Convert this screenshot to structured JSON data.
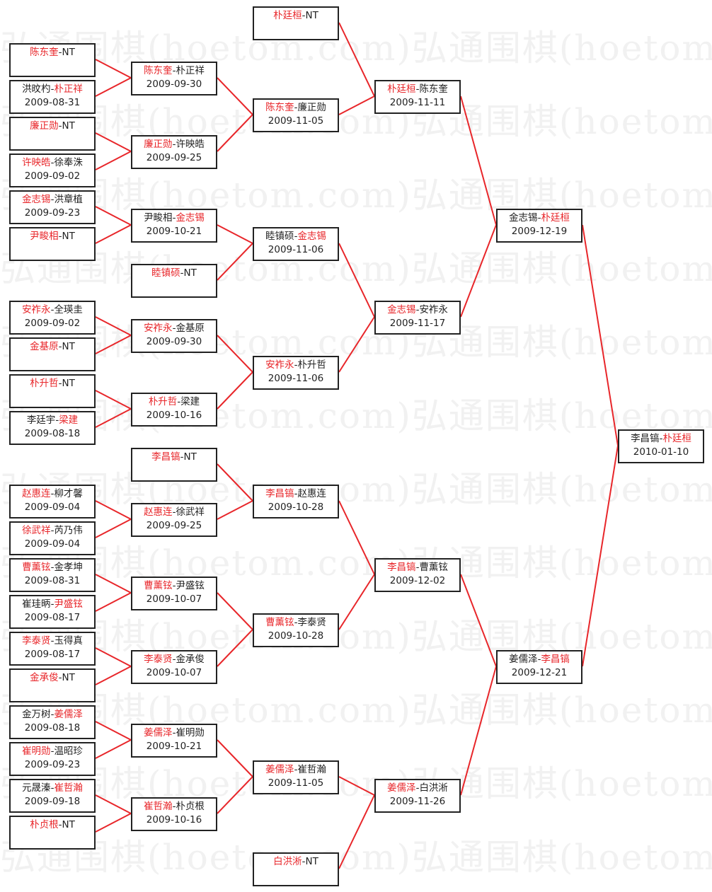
{
  "watermark": "弘通围棋(hoetom.com)",
  "colors": {
    "winner": "#e8262a",
    "line": "#e8262a",
    "border": "#222222"
  },
  "rounds": [
    [
      {
        "p1": "陈东奎",
        "p2": "NT",
        "winner": 1,
        "date": ""
      },
      {
        "p1": "洪旼杓",
        "p2": "朴正祥",
        "winner": 2,
        "date": "2009-08-31"
      },
      {
        "p1": "廉正勋",
        "p2": "NT",
        "winner": 1,
        "date": ""
      },
      {
        "p1": "许映皓",
        "p2": "徐奉洙",
        "winner": 1,
        "date": "2009-09-02"
      },
      {
        "p1": "金志锡",
        "p2": "洪章植",
        "winner": 1,
        "date": "2009-09-23"
      },
      {
        "p1": "尹畯相",
        "p2": "NT",
        "winner": 1,
        "date": ""
      },
      {
        "p1": "安祚永",
        "p2": "全瑛圭",
        "winner": 1,
        "date": "2009-09-02"
      },
      {
        "p1": "金基原",
        "p2": "NT",
        "winner": 1,
        "date": ""
      },
      {
        "p1": "朴升哲",
        "p2": "NT",
        "winner": 1,
        "date": ""
      },
      {
        "p1": "李廷宇",
        "p2": "梁建",
        "winner": 2,
        "date": "2009-08-18"
      },
      {
        "p1": "赵惠连",
        "p2": "柳才馨",
        "winner": 1,
        "date": "2009-09-04"
      },
      {
        "p1": "徐武祥",
        "p2": "芮乃伟",
        "winner": 1,
        "date": "2009-09-04"
      },
      {
        "p1": "曹薰铉",
        "p2": "金孝坤",
        "winner": 1,
        "date": "2009-08-31"
      },
      {
        "p1": "崔珪昞",
        "p2": "尹盛铉",
        "winner": 2,
        "date": "2009-08-17"
      },
      {
        "p1": "李泰贤",
        "p2": "玉得真",
        "winner": 1,
        "date": "2009-08-17"
      },
      {
        "p1": "金承俊",
        "p2": "NT",
        "winner": 1,
        "date": ""
      },
      {
        "p1": "金万树",
        "p2": "姜儒泽",
        "winner": 2,
        "date": "2009-08-18"
      },
      {
        "p1": "崔明勋",
        "p2": "温昭珍",
        "winner": 1,
        "date": "2009-09-23"
      },
      {
        "p1": "元晟溱",
        "p2": "崔哲瀚",
        "winner": 2,
        "date": "2009-09-18"
      },
      {
        "p1": "朴贞根",
        "p2": "NT",
        "winner": 1,
        "date": ""
      }
    ],
    [
      {
        "p1": "陈东奎",
        "p2": "朴正祥",
        "winner": 1,
        "date": "2009-09-30"
      },
      {
        "p1": "廉正勋",
        "p2": "许映皓",
        "winner": 1,
        "date": "2009-09-25"
      },
      {
        "p1": "尹畯相",
        "p2": "金志锡",
        "winner": 2,
        "date": "2009-10-21"
      },
      {
        "p1": "睦镇硕",
        "p2": "NT",
        "winner": 1,
        "date": ""
      },
      {
        "p1": "安祚永",
        "p2": "金基原",
        "winner": 1,
        "date": "2009-09-30"
      },
      {
        "p1": "朴升哲",
        "p2": "梁建",
        "winner": 1,
        "date": "2009-10-16"
      },
      {
        "p1": "李昌镐",
        "p2": "NT",
        "winner": 1,
        "date": ""
      },
      {
        "p1": "赵惠连",
        "p2": "徐武祥",
        "winner": 1,
        "date": "2009-09-25"
      },
      {
        "p1": "曹薰铉",
        "p2": "尹盛铉",
        "winner": 1,
        "date": "2009-10-07"
      },
      {
        "p1": "李泰贤",
        "p2": "金承俊",
        "winner": 1,
        "date": "2009-10-07"
      },
      {
        "p1": "姜儒泽",
        "p2": "崔明勋",
        "winner": 1,
        "date": "2009-10-21"
      },
      {
        "p1": "崔哲瀚",
        "p2": "朴贞根",
        "winner": 1,
        "date": "2009-10-16"
      }
    ],
    [
      {
        "p1": "朴廷桓",
        "p2": "NT",
        "winner": 1,
        "date": ""
      },
      {
        "p1": "陈东奎",
        "p2": "廉正勋",
        "winner": 1,
        "date": "2009-11-05"
      },
      {
        "p1": "睦镇硕",
        "p2": "金志锡",
        "winner": 2,
        "date": "2009-11-06"
      },
      {
        "p1": "安祚永",
        "p2": "朴升哲",
        "winner": 1,
        "date": "2009-11-06"
      },
      {
        "p1": "李昌镐",
        "p2": "赵惠连",
        "winner": 1,
        "date": "2009-10-28"
      },
      {
        "p1": "曹薰铉",
        "p2": "李泰贤",
        "winner": 1,
        "date": "2009-10-28"
      },
      {
        "p1": "姜儒泽",
        "p2": "崔哲瀚",
        "winner": 1,
        "date": "2009-11-05"
      },
      {
        "p1": "白洪淅",
        "p2": "NT",
        "winner": 1,
        "date": ""
      }
    ],
    [
      {
        "p1": "朴廷桓",
        "p2": "陈东奎",
        "winner": 1,
        "date": "2009-11-11"
      },
      {
        "p1": "金志锡",
        "p2": "安祚永",
        "winner": 1,
        "date": "2009-11-17"
      },
      {
        "p1": "李昌镐",
        "p2": "曹薰铉",
        "winner": 1,
        "date": "2009-12-02"
      },
      {
        "p1": "姜儒泽",
        "p2": "白洪淅",
        "winner": 1,
        "date": "2009-11-26"
      }
    ],
    [
      {
        "p1": "金志锡",
        "p2": "朴廷桓",
        "winner": 2,
        "date": "2009-12-19"
      },
      {
        "p1": "姜儒泽",
        "p2": "李昌镐",
        "winner": 2,
        "date": "2009-12-21"
      }
    ],
    [
      {
        "p1": "李昌镐",
        "p2": "朴廷桓",
        "winner": 2,
        "date": "2010-01-10"
      }
    ]
  ]
}
